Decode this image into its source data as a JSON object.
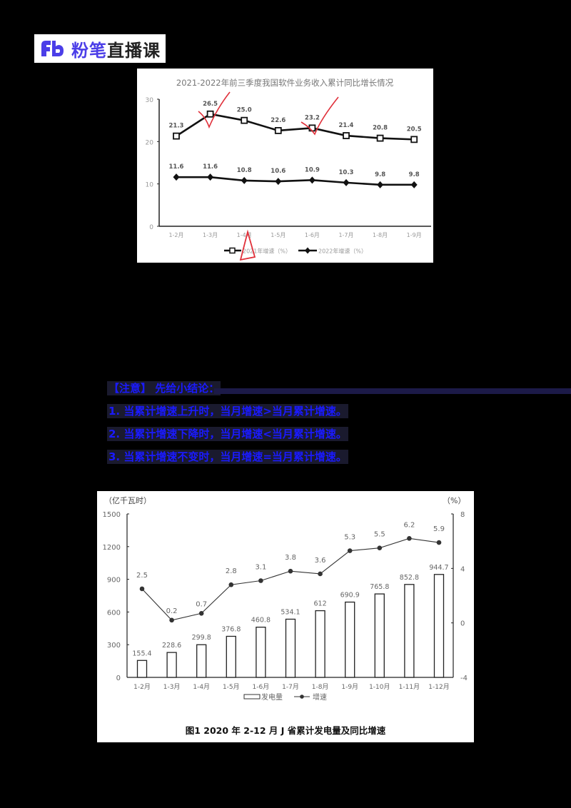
{
  "logo": {
    "mark": "Fb",
    "brand": "粉笔",
    "text": "直播课",
    "brand_color": "#4b3ee8"
  },
  "notes": {
    "heading": "【注意】 先给小结论：",
    "lines": [
      "1. 当累计增速上升时，当月增速>当月累计增速。",
      "2. 当累计增速下降时，当月增速<当月累计增速。",
      "3. 当累计增速不变时，当月增速=当月累计增速。"
    ],
    "text_color": "#1a1aff"
  },
  "chart_data": [
    {
      "type": "line",
      "title": "2021-2022年前三季度我国软件业务收入累计同比增长情况",
      "categories": [
        "1-2月",
        "1-3月",
        "1-4月",
        "1-5月",
        "1-6月",
        "1-7月",
        "1-8月",
        "1-9月"
      ],
      "series": [
        {
          "name": "2021年增速（%）",
          "marker": "square",
          "values": [
            21.3,
            26.5,
            25.0,
            22.6,
            23.2,
            21.4,
            20.8,
            20.5
          ]
        },
        {
          "name": "2022年增速（%）",
          "marker": "diamond",
          "values": [
            11.6,
            11.6,
            10.8,
            10.6,
            10.9,
            10.3,
            9.8,
            9.8
          ]
        }
      ],
      "xlabel": "",
      "ylabel": "",
      "ylim": [
        0,
        30
      ],
      "yticks": [
        0,
        10,
        20,
        30
      ],
      "grid": false,
      "legend_position": "bottom",
      "annotations": [
        "red check mark near 1-3月",
        "red check mark near 1-6月",
        "red triangle near 1-4月 axis label"
      ]
    },
    {
      "type": "bar+line",
      "title": "图1    2020 年 2-12 月 J 省累计发电量及同比增速",
      "categories": [
        "1-2月",
        "1-3月",
        "1-4月",
        "1-5月",
        "1-6月",
        "1-7月",
        "1-8月",
        "1-9月",
        "1-10月",
        "1-11月",
        "1-12月"
      ],
      "series": [
        {
          "name": "发电量",
          "type": "bar",
          "axis": "left",
          "values": [
            155.4,
            228.6,
            299.8,
            376.8,
            460.8,
            534.1,
            612,
            690.9,
            765.8,
            852.8,
            944.7
          ]
        },
        {
          "name": "增速",
          "type": "line",
          "axis": "right",
          "values": [
            2.5,
            0.2,
            0.7,
            2.8,
            3.1,
            3.8,
            3.6,
            5.3,
            5.5,
            6.2,
            5.9
          ]
        }
      ],
      "bar_labels": [
        "155.4",
        "228.6",
        "299.8",
        "376.8",
        "460.8",
        "534.1",
        "612",
        "690.9",
        "765.8",
        "852.8",
        "944.7"
      ],
      "line_labels": [
        "2.5",
        "0.2",
        "0.7",
        "2.8",
        "3.1",
        "3.8",
        "3.6",
        "5.3",
        "5.5",
        "6.2",
        "5.9"
      ],
      "ylabel_left": "（亿千瓦时）",
      "ylabel_right": "（%）",
      "ylim_left": [
        0,
        1500
      ],
      "yticks_left": [
        0,
        300,
        600,
        900,
        1200,
        1500
      ],
      "ylim_right": [
        -4,
        8
      ],
      "yticks_right": [
        -4,
        0,
        4,
        8
      ],
      "grid": false,
      "legend_position": "bottom"
    }
  ],
  "chart1_ticks": {
    "y": [
      "0",
      "10",
      "20",
      "30"
    ]
  },
  "chart2_ticks": {
    "left": [
      "0",
      "300",
      "600",
      "900",
      "1200",
      "1500"
    ],
    "right": [
      "-4",
      "0",
      "4",
      "8"
    ]
  }
}
